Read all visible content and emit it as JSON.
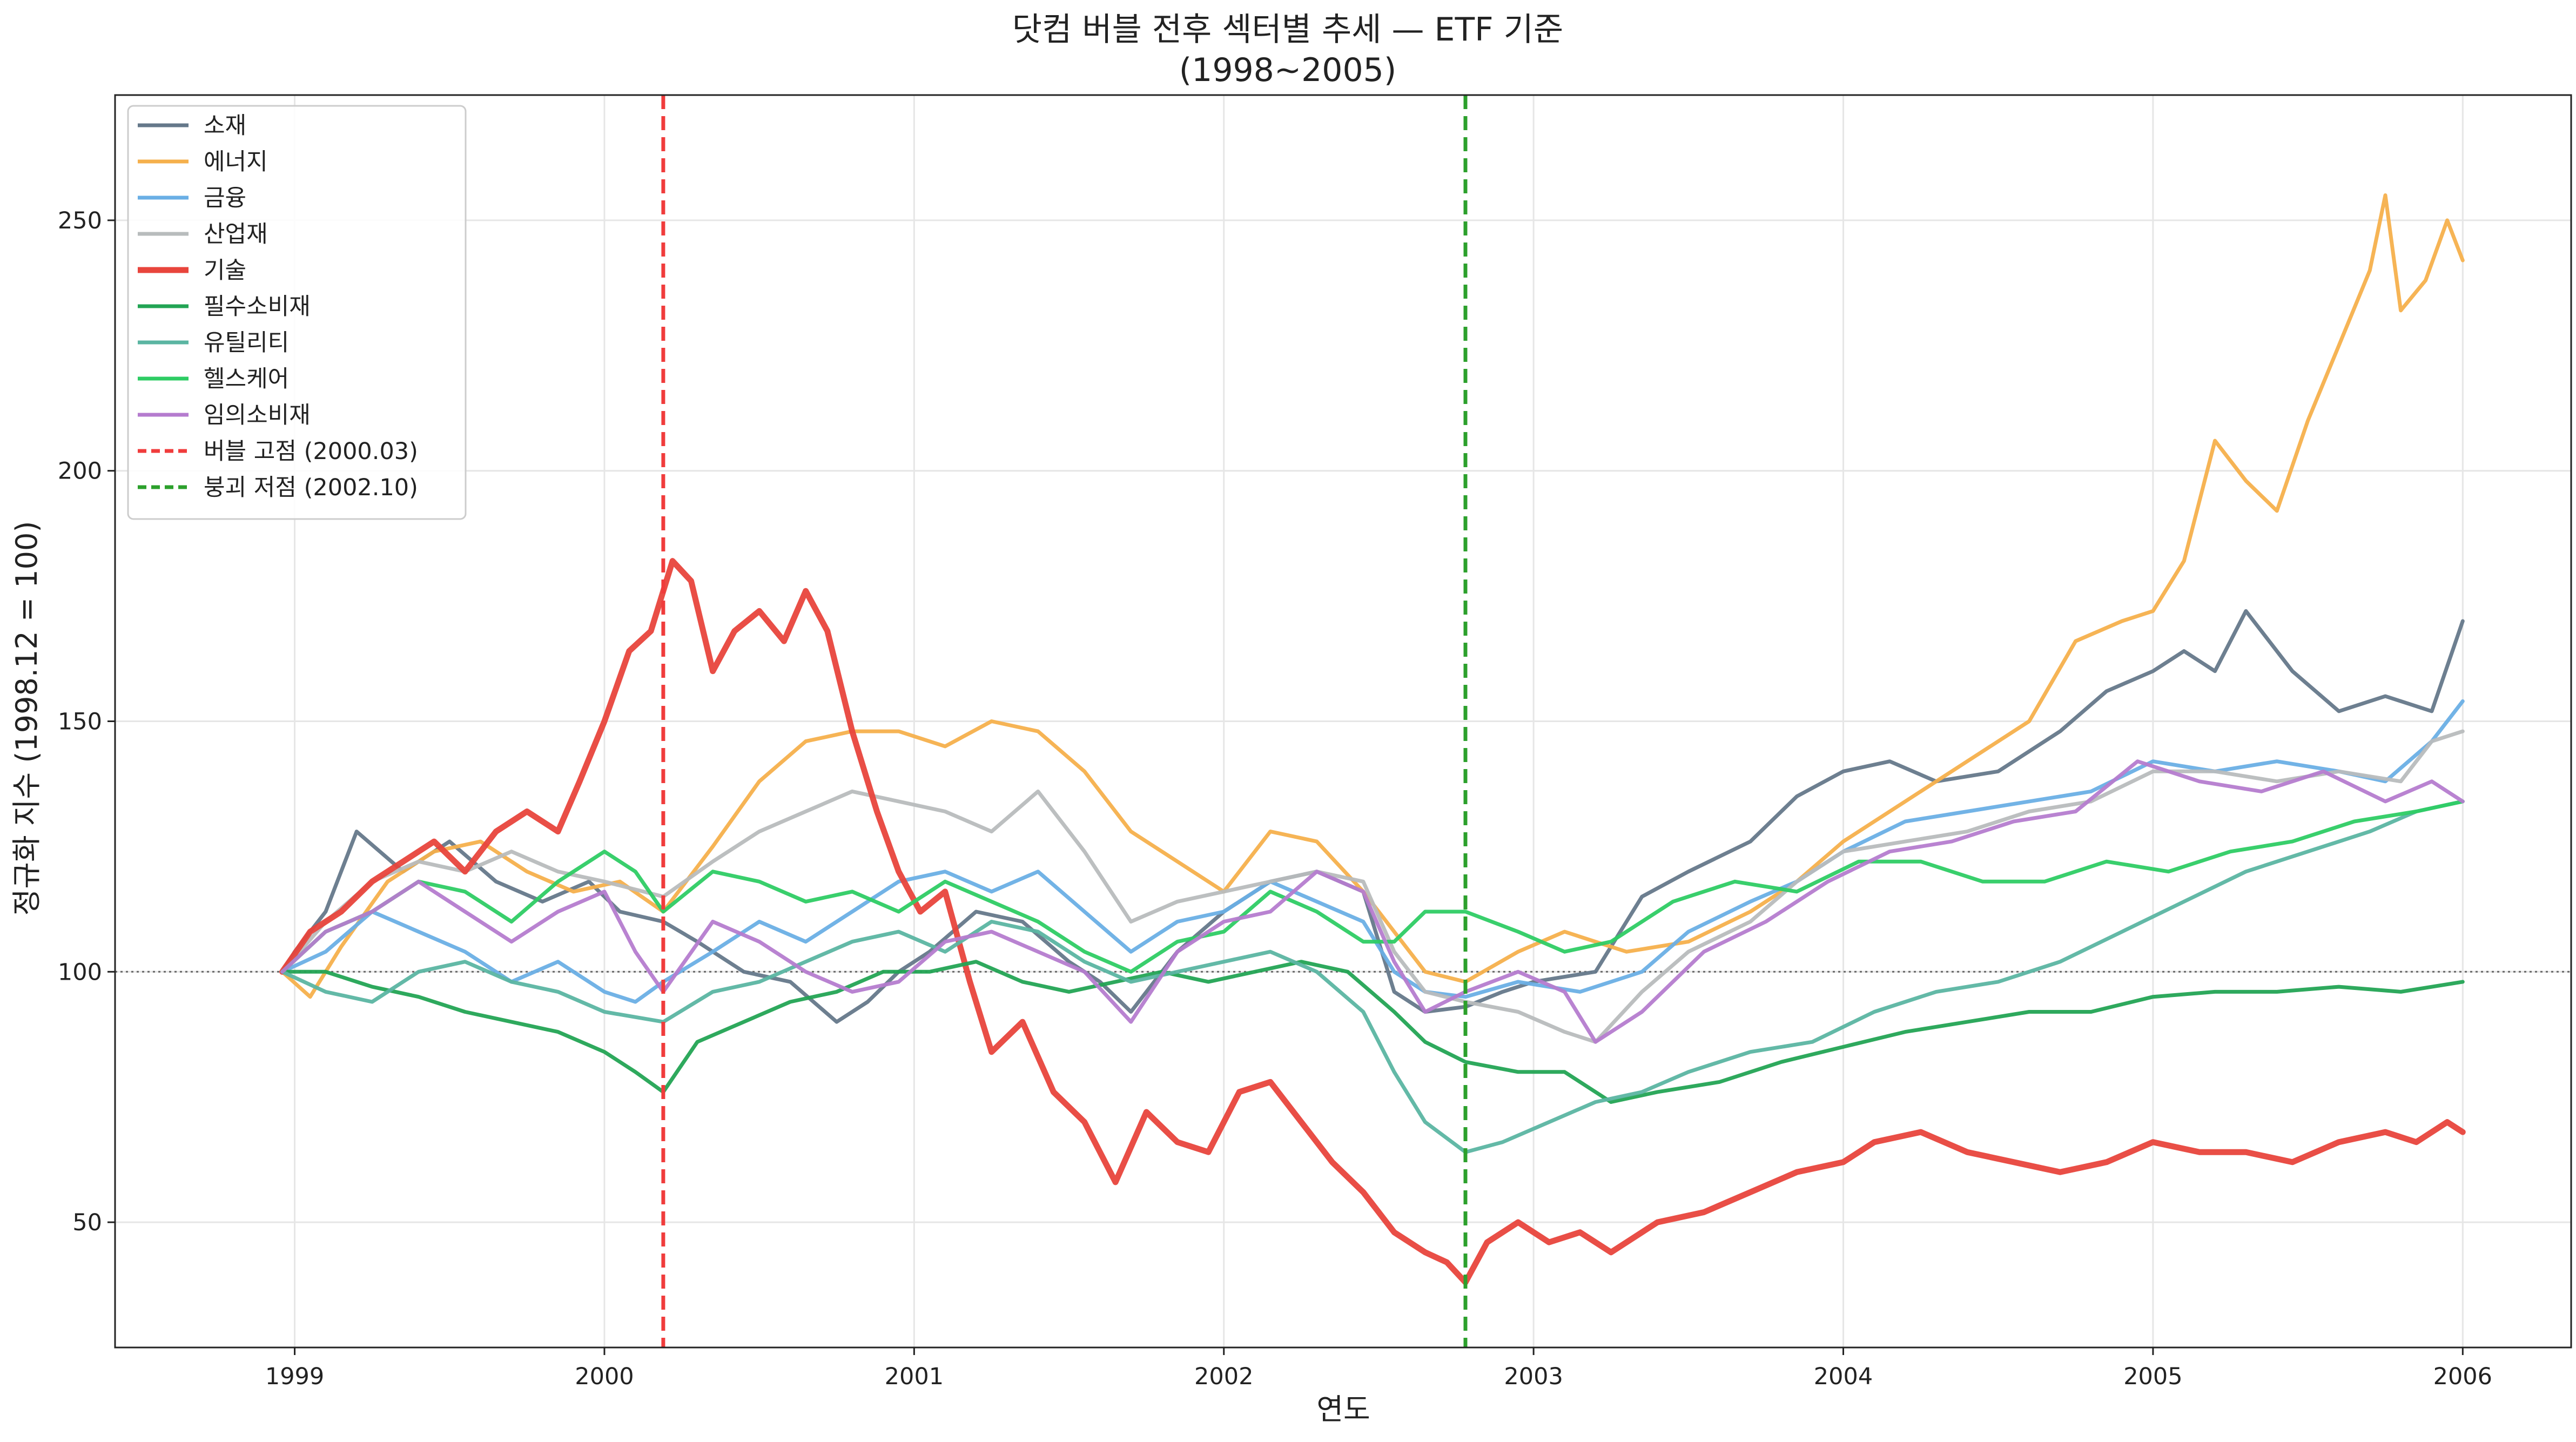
{
  "chart_data": {
    "type": "line",
    "title": "닷컴 버블 전후 섹터별 추세 — ETF 기준",
    "subtitle": "(1998~2005)",
    "xlabel": "연도",
    "ylabel": "정규화 지수 (1998.12 = 100)",
    "xlim": [
      1998.42,
      2006.35
    ],
    "ylim": [
      25,
      275
    ],
    "x_ticks": [
      1999,
      2000,
      2001,
      2002,
      2003,
      2004,
      2005,
      2006
    ],
    "x_tick_labels": [
      "1999",
      "2000",
      "2001",
      "2002",
      "2003",
      "2004",
      "2005",
      "2006"
    ],
    "y_ticks": [
      50,
      100,
      150,
      200,
      250
    ],
    "y_tick_labels": [
      "50",
      "100",
      "150",
      "200",
      "250"
    ],
    "grid": true,
    "legend_position": "top-left",
    "reference_hline": {
      "y": 100,
      "style": "dotted",
      "color": "#666666"
    },
    "vlines": [
      {
        "name": "버블 고점 (2000.03)",
        "x": 2000.19,
        "color": "#f03c3c"
      },
      {
        "name": "붕괴 저점 (2002.10)",
        "x": 2002.78,
        "color": "#2ca02c"
      }
    ],
    "series": [
      {
        "name": "소재",
        "color": "#65788a",
        "width": 7,
        "x": [
          1998.96,
          1999.0,
          1999.1,
          1999.2,
          1999.35,
          1999.5,
          1999.65,
          1999.8,
          1999.95,
          2000.05,
          2000.19,
          2000.3,
          2000.45,
          2000.6,
          2000.75,
          2000.85,
          2000.95,
          2001.05,
          2001.2,
          2001.35,
          2001.5,
          2001.6,
          2001.7,
          2001.85,
          2002.0,
          2002.15,
          2002.3,
          2002.45,
          2002.55,
          2002.65,
          2002.78,
          2002.9,
          2003.0,
          2003.2,
          2003.35,
          2003.5,
          2003.7,
          2003.85,
          2004.0,
          2004.15,
          2004.3,
          2004.5,
          2004.7,
          2004.85,
          2005.0,
          2005.1,
          2005.2,
          2005.3,
          2005.45,
          2005.6,
          2005.75,
          2005.9,
          2006.0
        ],
        "values": [
          100,
          104,
          112,
          128,
          120,
          126,
          118,
          114,
          118,
          112,
          110,
          106,
          100,
          98,
          90,
          94,
          100,
          104,
          112,
          110,
          102,
          98,
          92,
          104,
          112,
          118,
          120,
          116,
          96,
          92,
          93,
          96,
          98,
          100,
          115,
          120,
          126,
          135,
          140,
          142,
          138,
          140,
          148,
          156,
          160,
          164,
          160,
          172,
          160,
          152,
          155,
          152,
          170
        ]
      },
      {
        "name": "에너지",
        "color": "#f5b04c",
        "width": 7,
        "x": [
          1998.96,
          1999.05,
          1999.15,
          1999.3,
          1999.45,
          1999.6,
          1999.75,
          1999.9,
          2000.05,
          2000.19,
          2000.35,
          2000.5,
          2000.65,
          2000.8,
          2000.95,
          2001.1,
          2001.25,
          2001.4,
          2001.55,
          2001.7,
          2001.85,
          2002.0,
          2002.15,
          2002.3,
          2002.45,
          2002.55,
          2002.65,
          2002.78,
          2002.95,
          2003.1,
          2003.3,
          2003.5,
          2003.7,
          2003.85,
          2004.0,
          2004.2,
          2004.4,
          2004.6,
          2004.75,
          2004.9,
          2005.0,
          2005.1,
          2005.2,
          2005.3,
          2005.4,
          2005.5,
          2005.6,
          2005.7,
          2005.75,
          2005.8,
          2005.88,
          2005.95,
          2006.0
        ],
        "values": [
          100,
          95,
          105,
          118,
          124,
          126,
          120,
          116,
          118,
          112,
          125,
          138,
          146,
          148,
          148,
          145,
          150,
          148,
          140,
          128,
          122,
          116,
          128,
          126,
          116,
          108,
          100,
          98,
          104,
          108,
          104,
          106,
          112,
          118,
          126,
          134,
          142,
          150,
          166,
          170,
          172,
          182,
          206,
          198,
          192,
          210,
          225,
          240,
          255,
          232,
          238,
          250,
          242
        ]
      },
      {
        "name": "금융",
        "color": "#6aafe5",
        "width": 7,
        "x": [
          1998.96,
          1999.1,
          1999.25,
          1999.4,
          1999.55,
          1999.7,
          1999.85,
          2000.0,
          2000.1,
          2000.19,
          2000.35,
          2000.5,
          2000.65,
          2000.8,
          2000.95,
          2001.1,
          2001.25,
          2001.4,
          2001.55,
          2001.7,
          2001.85,
          2002.0,
          2002.15,
          2002.3,
          2002.45,
          2002.55,
          2002.65,
          2002.78,
          2002.95,
          2003.15,
          2003.35,
          2003.5,
          2003.7,
          2003.85,
          2004.0,
          2004.2,
          2004.4,
          2004.6,
          2004.8,
          2005.0,
          2005.2,
          2005.4,
          2005.6,
          2005.75,
          2005.9,
          2006.0
        ],
        "values": [
          100,
          104,
          112,
          108,
          104,
          98,
          102,
          96,
          94,
          98,
          104,
          110,
          106,
          112,
          118,
          120,
          116,
          120,
          112,
          104,
          110,
          112,
          118,
          114,
          110,
          100,
          96,
          95,
          98,
          96,
          100,
          108,
          114,
          118,
          124,
          130,
          132,
          134,
          136,
          142,
          140,
          142,
          140,
          138,
          146,
          154
        ]
      },
      {
        "name": "산업재",
        "color": "#b8bcbd",
        "width": 7,
        "x": [
          1998.96,
          1999.1,
          1999.25,
          1999.4,
          1999.55,
          1999.7,
          1999.85,
          2000.0,
          2000.19,
          2000.35,
          2000.5,
          2000.65,
          2000.8,
          2000.95,
          2001.1,
          2001.25,
          2001.4,
          2001.55,
          2001.7,
          2001.85,
          2002.0,
          2002.15,
          2002.3,
          2002.45,
          2002.55,
          2002.65,
          2002.78,
          2002.95,
          2003.1,
          2003.2,
          2003.35,
          2003.5,
          2003.7,
          2003.85,
          2004.0,
          2004.2,
          2004.4,
          2004.6,
          2004.8,
          2005.0,
          2005.2,
          2005.4,
          2005.6,
          2005.8,
          2005.9,
          2006.0
        ],
        "values": [
          100,
          110,
          118,
          122,
          120,
          124,
          120,
          118,
          115,
          122,
          128,
          132,
          136,
          134,
          132,
          128,
          136,
          124,
          110,
          114,
          116,
          118,
          120,
          118,
          104,
          96,
          94,
          92,
          88,
          86,
          96,
          104,
          110,
          118,
          124,
          126,
          128,
          132,
          134,
          140,
          140,
          138,
          140,
          138,
          146,
          148
        ]
      },
      {
        "name": "기술",
        "color": "#e8453c",
        "width": 11,
        "x": [
          1998.96,
          1999.05,
          1999.15,
          1999.25,
          1999.35,
          1999.45,
          1999.55,
          1999.65,
          1999.75,
          1999.85,
          1999.92,
          2000.0,
          2000.08,
          2000.15,
          2000.22,
          2000.28,
          2000.35,
          2000.42,
          2000.5,
          2000.58,
          2000.65,
          2000.72,
          2000.8,
          2000.88,
          2000.95,
          2001.02,
          2001.1,
          2001.18,
          2001.25,
          2001.35,
          2001.45,
          2001.55,
          2001.65,
          2001.75,
          2001.85,
          2001.95,
          2002.05,
          2002.15,
          2002.25,
          2002.35,
          2002.45,
          2002.55,
          2002.65,
          2002.72,
          2002.78,
          2002.85,
          2002.95,
          2003.05,
          2003.15,
          2003.25,
          2003.4,
          2003.55,
          2003.7,
          2003.85,
          2004.0,
          2004.1,
          2004.25,
          2004.4,
          2004.55,
          2004.7,
          2004.85,
          2005.0,
          2005.15,
          2005.3,
          2005.45,
          2005.6,
          2005.75,
          2005.85,
          2005.95,
          2006.0
        ],
        "values": [
          100,
          108,
          112,
          118,
          122,
          126,
          120,
          128,
          132,
          128,
          138,
          150,
          164,
          168,
          182,
          178,
          160,
          168,
          172,
          166,
          176,
          168,
          148,
          132,
          120,
          112,
          116,
          98,
          84,
          90,
          76,
          70,
          58,
          72,
          66,
          64,
          76,
          78,
          70,
          62,
          56,
          48,
          44,
          42,
          38,
          46,
          50,
          46,
          48,
          44,
          50,
          52,
          56,
          60,
          62,
          66,
          68,
          64,
          62,
          60,
          62,
          66,
          64,
          64,
          62,
          66,
          68,
          66,
          70,
          68
        ]
      },
      {
        "name": "필수소비재",
        "color": "#23a454",
        "width": 7,
        "x": [
          1998.96,
          1999.1,
          1999.25,
          1999.4,
          1999.55,
          1999.7,
          1999.85,
          2000.0,
          2000.1,
          2000.19,
          2000.3,
          2000.45,
          2000.6,
          2000.75,
          2000.9,
          2001.05,
          2001.2,
          2001.35,
          2001.5,
          2001.65,
          2001.8,
          2001.95,
          2002.1,
          2002.25,
          2002.4,
          2002.55,
          2002.65,
          2002.78,
          2002.95,
          2003.1,
          2003.25,
          2003.4,
          2003.6,
          2003.8,
          2004.0,
          2004.2,
          2004.4,
          2004.6,
          2004.8,
          2005.0,
          2005.2,
          2005.4,
          2005.6,
          2005.8,
          2006.0
        ],
        "values": [
          100,
          100,
          97,
          95,
          92,
          90,
          88,
          84,
          80,
          76,
          86,
          90,
          94,
          96,
          100,
          100,
          102,
          98,
          96,
          98,
          100,
          98,
          100,
          102,
          100,
          92,
          86,
          82,
          80,
          80,
          74,
          76,
          78,
          82,
          85,
          88,
          90,
          92,
          92,
          95,
          96,
          96,
          97,
          96,
          98
        ]
      },
      {
        "name": "유틸리티",
        "color": "#5bb5a2",
        "width": 7,
        "x": [
          1998.96,
          1999.1,
          1999.25,
          1999.4,
          1999.55,
          1999.7,
          1999.85,
          2000.0,
          2000.19,
          2000.35,
          2000.5,
          2000.65,
          2000.8,
          2000.95,
          2001.1,
          2001.25,
          2001.4,
          2001.55,
          2001.7,
          2001.85,
          2002.0,
          2002.15,
          2002.3,
          2002.45,
          2002.55,
          2002.65,
          2002.78,
          2002.9,
          2003.05,
          2003.2,
          2003.35,
          2003.5,
          2003.7,
          2003.9,
          2004.1,
          2004.3,
          2004.5,
          2004.7,
          2004.9,
          2005.1,
          2005.3,
          2005.5,
          2005.7,
          2005.85,
          2006.0
        ],
        "values": [
          100,
          96,
          94,
          100,
          102,
          98,
          96,
          92,
          90,
          96,
          98,
          102,
          106,
          108,
          104,
          110,
          108,
          102,
          98,
          100,
          102,
          104,
          100,
          92,
          80,
          70,
          64,
          66,
          70,
          74,
          76,
          80,
          84,
          86,
          92,
          96,
          98,
          102,
          108,
          114,
          120,
          124,
          128,
          132,
          134
        ]
      },
      {
        "name": "헬스케어",
        "color": "#2ecc64",
        "width": 7,
        "x": [
          1998.96,
          1999.1,
          1999.25,
          1999.4,
          1999.55,
          1999.7,
          1999.85,
          2000.0,
          2000.1,
          2000.19,
          2000.35,
          2000.5,
          2000.65,
          2000.8,
          2000.95,
          2001.1,
          2001.25,
          2001.4,
          2001.55,
          2001.7,
          2001.85,
          2002.0,
          2002.15,
          2002.3,
          2002.45,
          2002.55,
          2002.65,
          2002.78,
          2002.95,
          2003.1,
          2003.25,
          2003.45,
          2003.65,
          2003.85,
          2004.05,
          2004.25,
          2004.45,
          2004.65,
          2004.85,
          2005.05,
          2005.25,
          2005.45,
          2005.65,
          2005.85,
          2006.0
        ],
        "values": [
          100,
          108,
          112,
          118,
          116,
          110,
          118,
          124,
          120,
          112,
          120,
          118,
          114,
          116,
          112,
          118,
          114,
          110,
          104,
          100,
          106,
          108,
          116,
          112,
          106,
          106,
          112,
          112,
          108,
          104,
          106,
          114,
          118,
          116,
          122,
          122,
          118,
          118,
          122,
          120,
          124,
          126,
          130,
          132,
          134
        ]
      },
      {
        "name": "임의소비재",
        "color": "#b57ccf",
        "width": 7,
        "x": [
          1998.96,
          1999.1,
          1999.25,
          1999.4,
          1999.55,
          1999.7,
          1999.85,
          2000.0,
          2000.1,
          2000.19,
          2000.35,
          2000.5,
          2000.65,
          2000.8,
          2000.95,
          2001.1,
          2001.25,
          2001.4,
          2001.55,
          2001.7,
          2001.85,
          2002.0,
          2002.15,
          2002.3,
          2002.45,
          2002.55,
          2002.65,
          2002.78,
          2002.95,
          2003.1,
          2003.2,
          2003.35,
          2003.55,
          2003.75,
          2003.95,
          2004.15,
          2004.35,
          2004.55,
          2004.75,
          2004.95,
          2005.15,
          2005.35,
          2005.55,
          2005.75,
          2005.9,
          2006.0
        ],
        "values": [
          100,
          108,
          112,
          118,
          112,
          106,
          112,
          116,
          104,
          96,
          110,
          106,
          100,
          96,
          98,
          106,
          108,
          104,
          100,
          90,
          104,
          110,
          112,
          120,
          116,
          102,
          92,
          96,
          100,
          96,
          86,
          92,
          104,
          110,
          118,
          124,
          126,
          130,
          132,
          142,
          138,
          136,
          140,
          134,
          138,
          134
        ]
      }
    ]
  }
}
